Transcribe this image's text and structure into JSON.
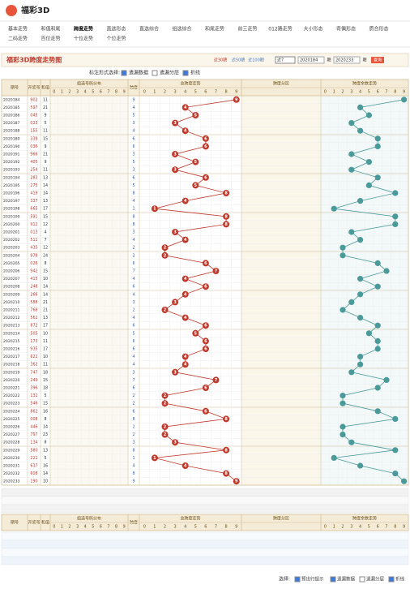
{
  "header": {
    "logo": "福彩3D"
  },
  "nav": [
    "基本走势",
    "和值和尾",
    "跨度走势",
    "直选形态",
    "直选综合",
    "组选综合",
    "和尾走势",
    "前三走势",
    "012路走势",
    "大小形态",
    "奇偶形态",
    "质合形态",
    "二码走势",
    "百位走势",
    "十位走势",
    "个位走势"
  ],
  "title": "福彩3D跨度走势图",
  "filters": {
    "recent": [
      "近30期",
      "近50期",
      "近100期"
    ],
    "select": "近7",
    "from": "2020184",
    "period_label": "期",
    "to": "2020233",
    "query": "查询"
  },
  "options": {
    "label": "标注形式选择:",
    "items": [
      "遗漏数据",
      "遗漏分层",
      "折线"
    ]
  },
  "table": {
    "columns": [
      "期号",
      "开奖号",
      "和值",
      "组选号码分布",
      "跨度",
      "总跨度走势",
      "跨度分区",
      "跨度余数走势"
    ],
    "digits": [
      "0",
      "1",
      "2",
      "3",
      "4",
      "5",
      "6",
      "7",
      "8",
      "9"
    ],
    "periods": [
      "2020184",
      "2020185",
      "2020186",
      "2020187",
      "2020188",
      "2020189",
      "2020190",
      "2020191",
      "2020192",
      "2020193",
      "2020194",
      "2020195",
      "2020196",
      "2020197",
      "2020198",
      "2020199",
      "2020200",
      "2020201",
      "2020202",
      "2020203",
      "2020204",
      "2020205",
      "2020206",
      "2020207",
      "2020208",
      "2020209",
      "2020210",
      "2020211",
      "2020212",
      "2020213",
      "2020214",
      "2020215",
      "2020216",
      "2020217",
      "2020218",
      "2020219",
      "2020220",
      "2020221",
      "2020222",
      "2020223",
      "2020224",
      "2020225",
      "2020226",
      "2020227",
      "2020228",
      "2020229",
      "2020230",
      "2020231",
      "2020232",
      "2020233"
    ],
    "numbers": [
      "902",
      "597",
      "045",
      "023",
      "155",
      "339",
      "036",
      "966",
      "405",
      "254",
      "283",
      "275",
      "419",
      "337",
      "665",
      "591",
      "912",
      "013",
      "511",
      "435",
      "978",
      "026",
      "942",
      "415",
      "248",
      "266",
      "588",
      "768",
      "562",
      "872",
      "505",
      "173",
      "935",
      "622",
      "362",
      "747",
      "249",
      "396",
      "131",
      "546",
      "862",
      "008",
      "446",
      "797",
      "134",
      "580",
      "221",
      "637",
      "608",
      "190"
    ],
    "sums": [
      11,
      21,
      9,
      5,
      11,
      15,
      9,
      21,
      9,
      11,
      13,
      14,
      14,
      13,
      17,
      15,
      12,
      4,
      7,
      12,
      24,
      8,
      15,
      10,
      14,
      14,
      21,
      21,
      13,
      17,
      10,
      11,
      17,
      10,
      11,
      18,
      15,
      18,
      5,
      15,
      16,
      8,
      14,
      23,
      8,
      13,
      5,
      16,
      14,
      10
    ],
    "spans": [
      9,
      4,
      5,
      3,
      4,
      6,
      6,
      3,
      5,
      3,
      6,
      5,
      8,
      4,
      1,
      8,
      8,
      3,
      4,
      2,
      2,
      6,
      7,
      4,
      6,
      4,
      3,
      2,
      4,
      6,
      5,
      6,
      6,
      4,
      4,
      3,
      7,
      6,
      2,
      2,
      6,
      8,
      2,
      2,
      3,
      8,
      1,
      4,
      8,
      9
    ]
  },
  "footer": {
    "label": "选择:",
    "items": [
      "预出行提示",
      "遗漏数据",
      "遗漏分层",
      "折线"
    ]
  }
}
